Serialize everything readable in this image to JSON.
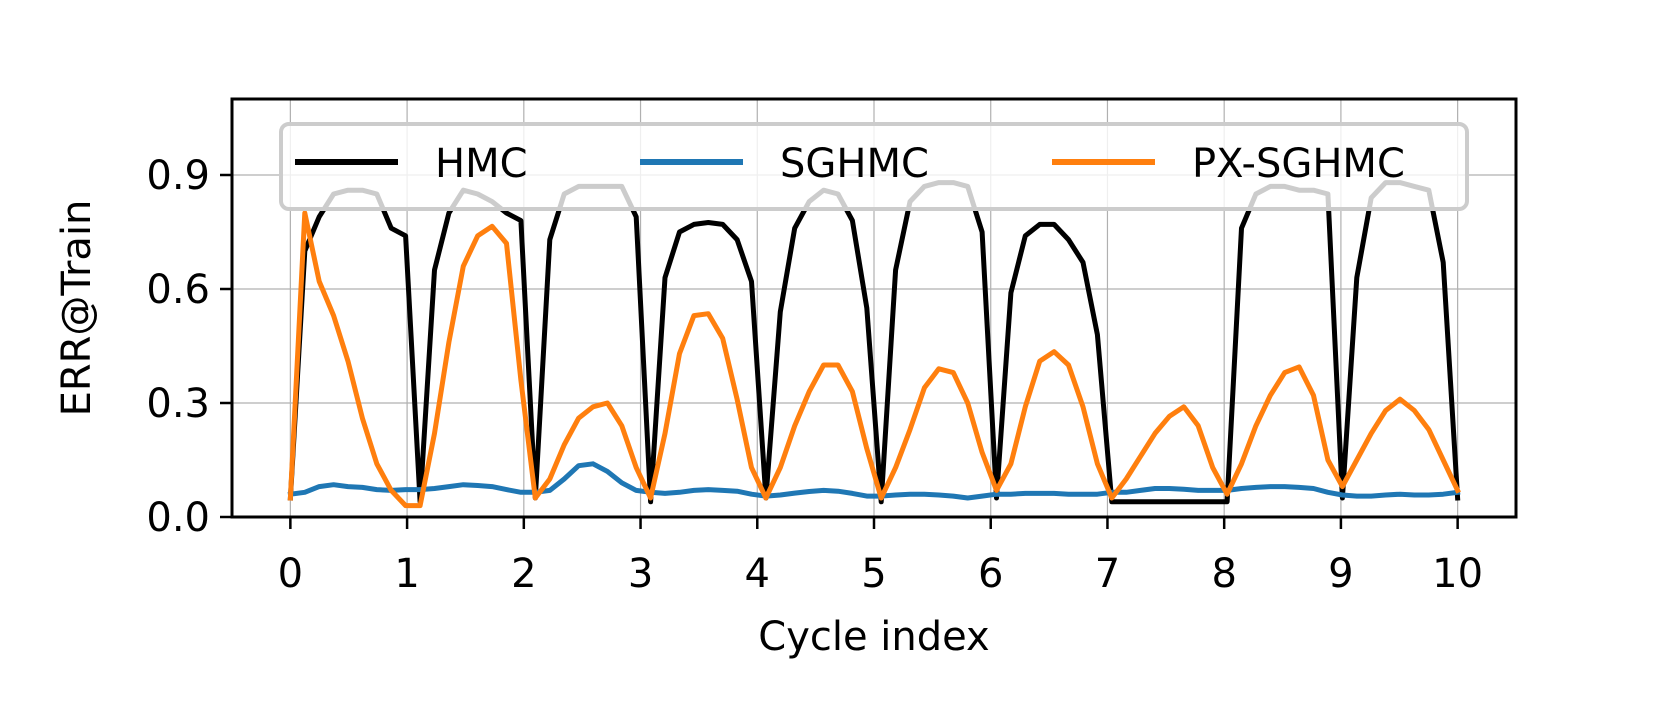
{
  "chart_data": {
    "type": "line",
    "title": "",
    "xlabel": "Cycle index",
    "ylabel": "ERR@Train",
    "xlim": [
      -0.5,
      10.5
    ],
    "ylim": [
      0.0,
      1.1
    ],
    "xticks": [
      0,
      1,
      2,
      3,
      4,
      5,
      6,
      7,
      8,
      9,
      10
    ],
    "yticks": [
      0.0,
      0.3,
      0.6,
      0.9
    ],
    "xtick_labels": [
      "0",
      "1",
      "2",
      "3",
      "4",
      "5",
      "6",
      "7",
      "8",
      "9",
      "10"
    ],
    "ytick_labels": [
      "0.0",
      "0.3",
      "0.6",
      "0.9"
    ],
    "grid": true,
    "legend_position": "top",
    "series": [
      {
        "name": "HMC",
        "color": "#000000",
        "values": [
          0.05,
          0.7,
          0.79,
          0.85,
          0.86,
          0.86,
          0.85,
          0.76,
          0.74,
          0.04,
          0.65,
          0.8,
          0.86,
          0.85,
          0.83,
          0.8,
          0.78,
          0.05,
          0.73,
          0.85,
          0.87,
          0.87,
          0.87,
          0.87,
          0.79,
          0.04,
          0.63,
          0.75,
          0.77,
          0.775,
          0.77,
          0.73,
          0.62,
          0.05,
          0.54,
          0.76,
          0.83,
          0.86,
          0.85,
          0.78,
          0.55,
          0.04,
          0.65,
          0.83,
          0.87,
          0.88,
          0.88,
          0.87,
          0.75,
          0.05,
          0.59,
          0.74,
          0.77,
          0.77,
          0.73,
          0.67,
          0.48,
          0.04,
          0.04,
          0.04,
          0.04,
          0.04,
          0.04,
          0.04,
          0.04,
          0.04,
          0.76,
          0.85,
          0.87,
          0.87,
          0.86,
          0.86,
          0.85,
          0.05,
          0.63,
          0.84,
          0.88,
          0.88,
          0.87,
          0.86,
          0.67,
          0.05
        ]
      },
      {
        "name": "SGHMC",
        "color": "#1f77b4",
        "values": [
          0.06,
          0.065,
          0.08,
          0.085,
          0.08,
          0.078,
          0.072,
          0.07,
          0.072,
          0.072,
          0.075,
          0.08,
          0.085,
          0.083,
          0.08,
          0.072,
          0.065,
          0.065,
          0.07,
          0.1,
          0.135,
          0.14,
          0.12,
          0.09,
          0.07,
          0.065,
          0.062,
          0.065,
          0.07,
          0.072,
          0.07,
          0.068,
          0.06,
          0.055,
          0.058,
          0.063,
          0.067,
          0.07,
          0.068,
          0.062,
          0.055,
          0.055,
          0.058,
          0.06,
          0.06,
          0.058,
          0.055,
          0.05,
          0.055,
          0.06,
          0.06,
          0.062,
          0.062,
          0.062,
          0.06,
          0.06,
          0.06,
          0.065,
          0.065,
          0.07,
          0.075,
          0.075,
          0.073,
          0.07,
          0.07,
          0.07,
          0.075,
          0.078,
          0.08,
          0.08,
          0.078,
          0.075,
          0.065,
          0.058,
          0.055,
          0.055,
          0.058,
          0.06,
          0.058,
          0.058,
          0.06,
          0.065
        ]
      },
      {
        "name": "PX-SGHMC",
        "color": "#ff7f0e",
        "values": [
          0.05,
          0.8,
          0.62,
          0.53,
          0.41,
          0.26,
          0.14,
          0.07,
          0.03,
          0.03,
          0.22,
          0.46,
          0.66,
          0.74,
          0.765,
          0.72,
          0.36,
          0.05,
          0.1,
          0.19,
          0.26,
          0.29,
          0.3,
          0.24,
          0.13,
          0.05,
          0.22,
          0.43,
          0.53,
          0.535,
          0.47,
          0.31,
          0.13,
          0.05,
          0.13,
          0.24,
          0.33,
          0.4,
          0.4,
          0.33,
          0.18,
          0.05,
          0.13,
          0.23,
          0.34,
          0.39,
          0.38,
          0.3,
          0.17,
          0.07,
          0.14,
          0.29,
          0.41,
          0.435,
          0.4,
          0.29,
          0.14,
          0.05,
          0.1,
          0.16,
          0.22,
          0.265,
          0.29,
          0.24,
          0.13,
          0.06,
          0.14,
          0.24,
          0.32,
          0.38,
          0.395,
          0.32,
          0.15,
          0.08,
          0.15,
          0.22,
          0.28,
          0.31,
          0.28,
          0.23,
          0.15,
          0.07
        ]
      }
    ]
  }
}
